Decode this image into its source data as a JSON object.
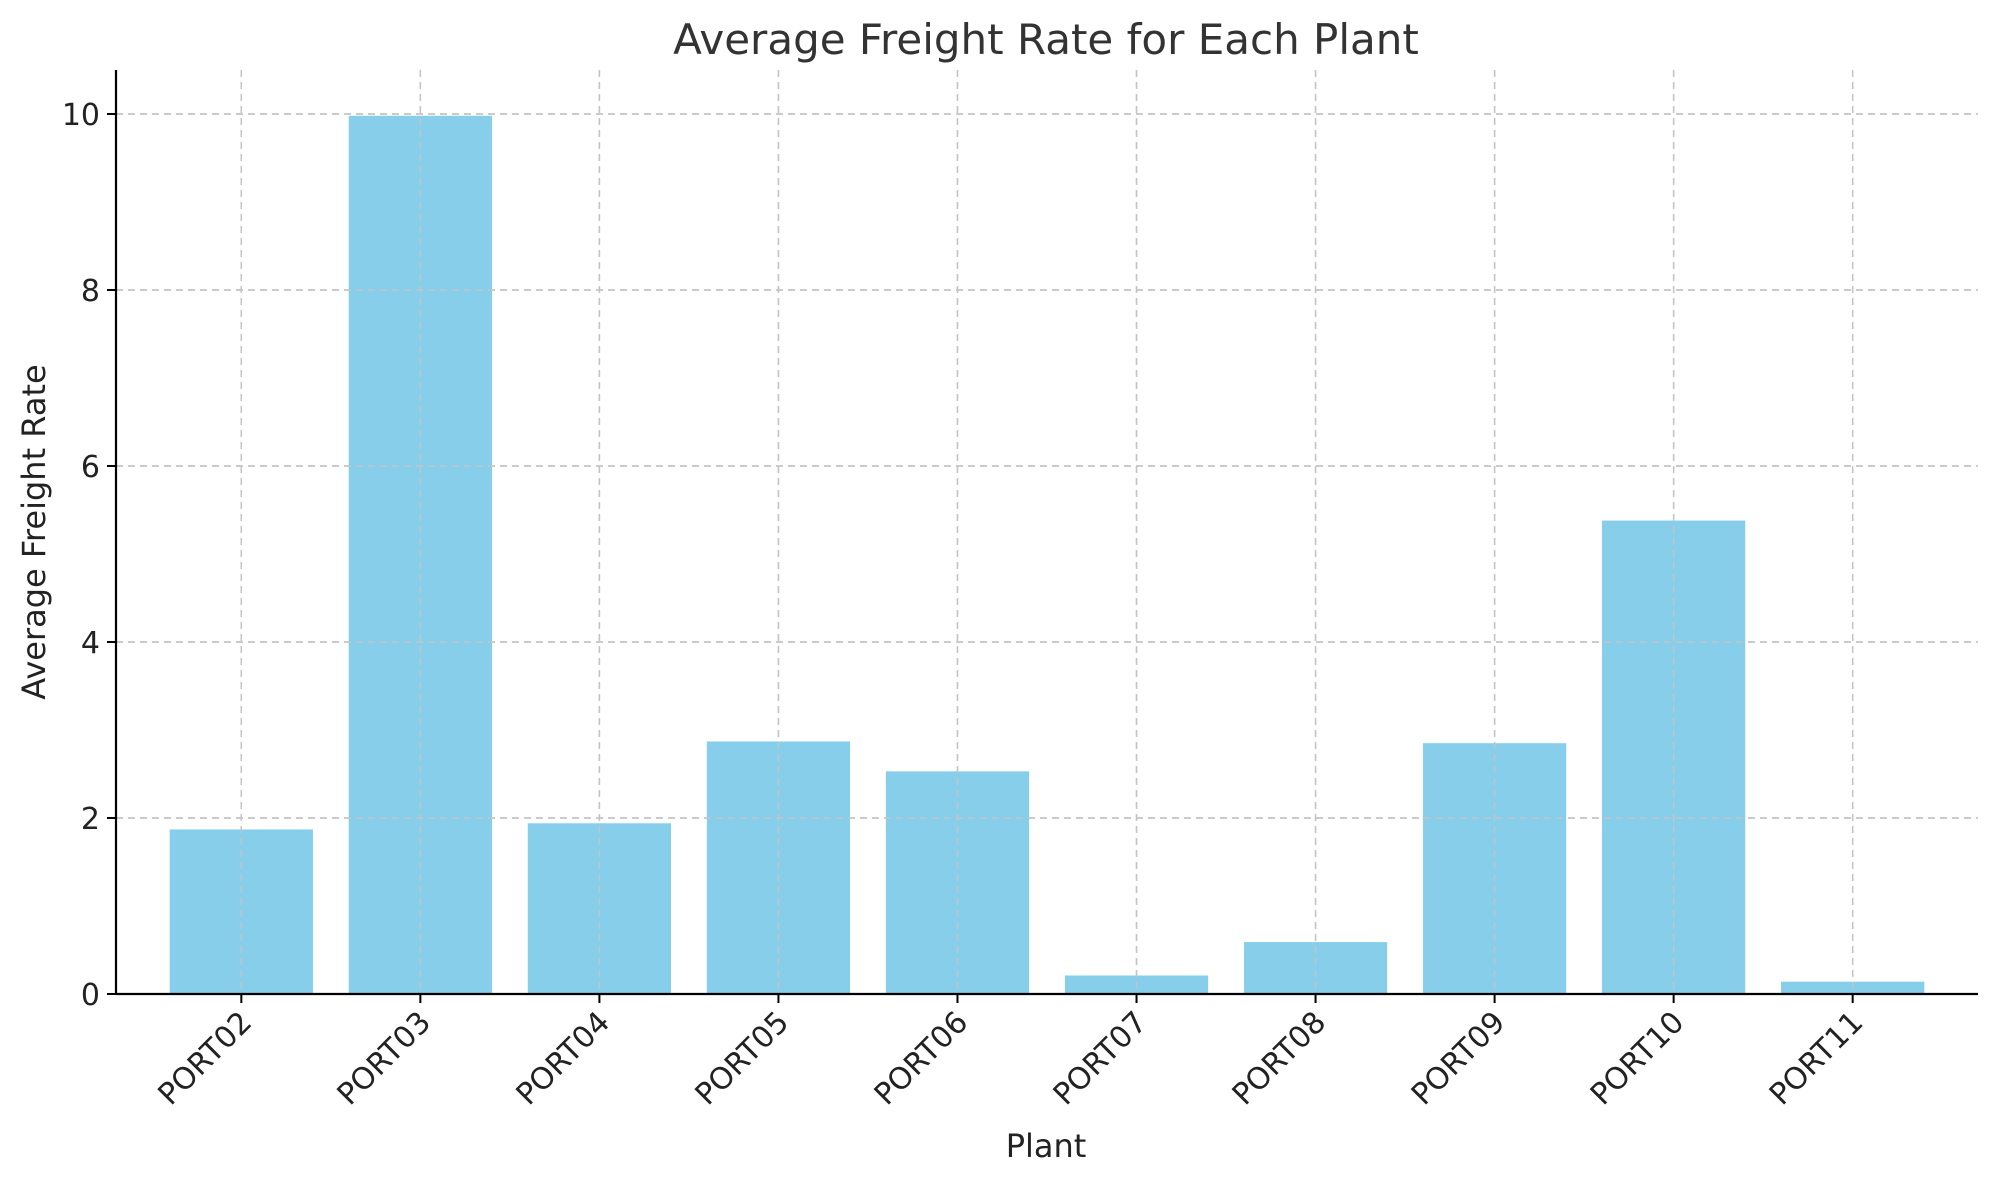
{
  "chart_data": {
    "type": "bar",
    "title": "Average Freight Rate for Each Plant",
    "xlabel": "Plant",
    "ylabel": "Average Freight Rate",
    "categories": [
      "PORT02",
      "PORT03",
      "PORT04",
      "PORT05",
      "PORT06",
      "PORT07",
      "PORT08",
      "PORT09",
      "PORT10",
      "PORT11"
    ],
    "values": [
      1.87,
      9.98,
      1.94,
      2.87,
      2.53,
      0.21,
      0.59,
      2.85,
      5.38,
      0.14
    ],
    "ylim": [
      0,
      10.5
    ],
    "yticks": [
      0,
      2,
      4,
      6,
      8,
      10
    ],
    "grid": true,
    "bar_color": "#87CEEB"
  }
}
